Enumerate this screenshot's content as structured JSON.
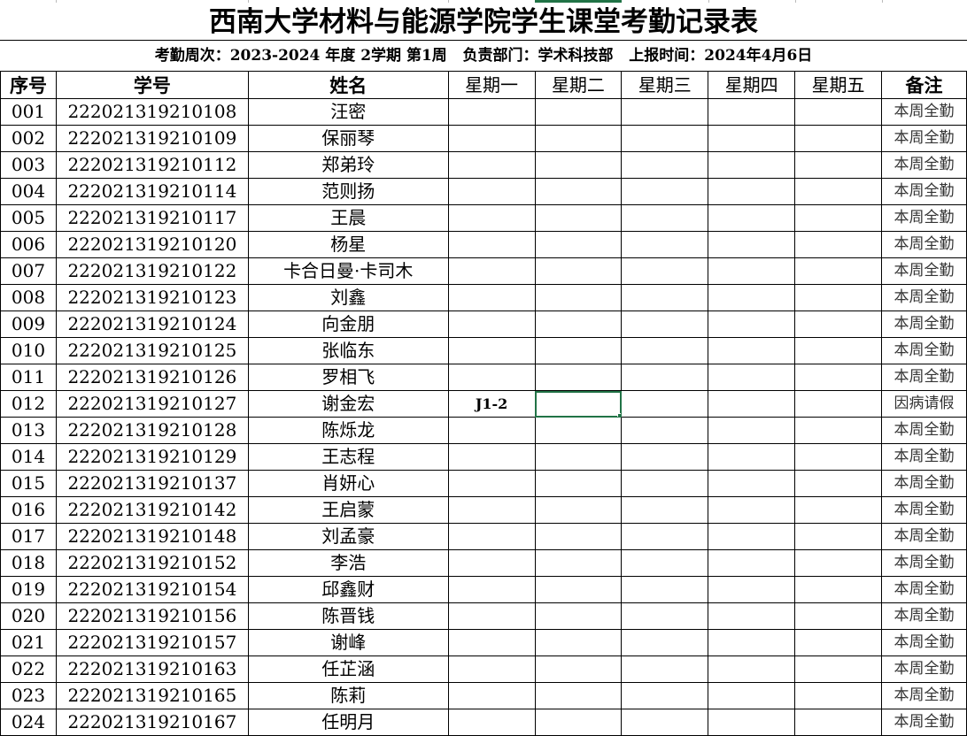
{
  "title": "西南大学材料与能源学院学生课堂考勤记录表",
  "subtitle": "考勤周次：2023-2024 年度 2学期 第1周   负责部门：学术科技部   上报时间：2024年4月6日",
  "headers": [
    "序号",
    "学号",
    "姓名",
    "星期一",
    "星期二",
    "星期三",
    "星期四",
    "星期五",
    "备注"
  ],
  "selection_color": "#217346",
  "rows": [
    [
      "001",
      "222021319210108",
      "汪密",
      "",
      "",
      "",
      "",
      "",
      "本周全勤"
    ],
    [
      "002",
      "222021319210109",
      "保丽琴",
      "",
      "",
      "",
      "",
      "",
      "本周全勤"
    ],
    [
      "003",
      "222021319210112",
      "郑弟玲",
      "",
      "",
      "",
      "",
      "",
      "本周全勤"
    ],
    [
      "004",
      "222021319210114",
      "范则扬",
      "",
      "",
      "",
      "",
      "",
      "本周全勤"
    ],
    [
      "005",
      "222021319210117",
      "王晨",
      "",
      "",
      "",
      "",
      "",
      "本周全勤"
    ],
    [
      "006",
      "222021319210120",
      "杨星",
      "",
      "",
      "",
      "",
      "",
      "本周全勤"
    ],
    [
      "007",
      "222021319210122",
      "卡合日曼·卡司木",
      "",
      "",
      "",
      "",
      "",
      "本周全勤"
    ],
    [
      "008",
      "222021319210123",
      "刘鑫",
      "",
      "",
      "",
      "",
      "",
      "本周全勤"
    ],
    [
      "009",
      "222021319210124",
      "向金朋",
      "",
      "",
      "",
      "",
      "",
      "本周全勤"
    ],
    [
      "010",
      "222021319210125",
      "张临东",
      "",
      "",
      "",
      "",
      "",
      "本周全勤"
    ],
    [
      "011",
      "222021319210126",
      "罗相飞",
      "",
      "",
      "",
      "",
      "",
      "本周全勤"
    ],
    [
      "012",
      "222021319210127",
      "谢金宏",
      "J1-2",
      "",
      "",
      "",
      "",
      "因病请假"
    ],
    [
      "013",
      "222021319210128",
      "陈烁龙",
      "",
      "",
      "",
      "",
      "",
      "本周全勤"
    ],
    [
      "014",
      "222021319210129",
      "王志程",
      "",
      "",
      "",
      "",
      "",
      "本周全勤"
    ],
    [
      "015",
      "222021319210137",
      "肖妍心",
      "",
      "",
      "",
      "",
      "",
      "本周全勤"
    ],
    [
      "016",
      "222021319210142",
      "王启蒙",
      "",
      "",
      "",
      "",
      "",
      "本周全勤"
    ],
    [
      "017",
      "222021319210148",
      "刘孟豪",
      "",
      "",
      "",
      "",
      "",
      "本周全勤"
    ],
    [
      "018",
      "222021319210152",
      "李浩",
      "",
      "",
      "",
      "",
      "",
      "本周全勤"
    ],
    [
      "019",
      "222021319210154",
      "邱鑫财",
      "",
      "",
      "",
      "",
      "",
      "本周全勤"
    ],
    [
      "020",
      "222021319210156",
      "陈晋钱",
      "",
      "",
      "",
      "",
      "",
      "本周全勤"
    ],
    [
      "021",
      "222021319210157",
      "谢峰",
      "",
      "",
      "",
      "",
      "",
      "本周全勤"
    ],
    [
      "022",
      "222021319210163",
      "任芷涵",
      "",
      "",
      "",
      "",
      "",
      "本周全勤"
    ],
    [
      "023",
      "222021319210165",
      "陈莉",
      "",
      "",
      "",
      "",
      "",
      "本周全勤"
    ],
    [
      "024",
      "222021319210167",
      "任明月",
      "",
      "",
      "",
      "",
      "",
      "本周全勤"
    ]
  ]
}
